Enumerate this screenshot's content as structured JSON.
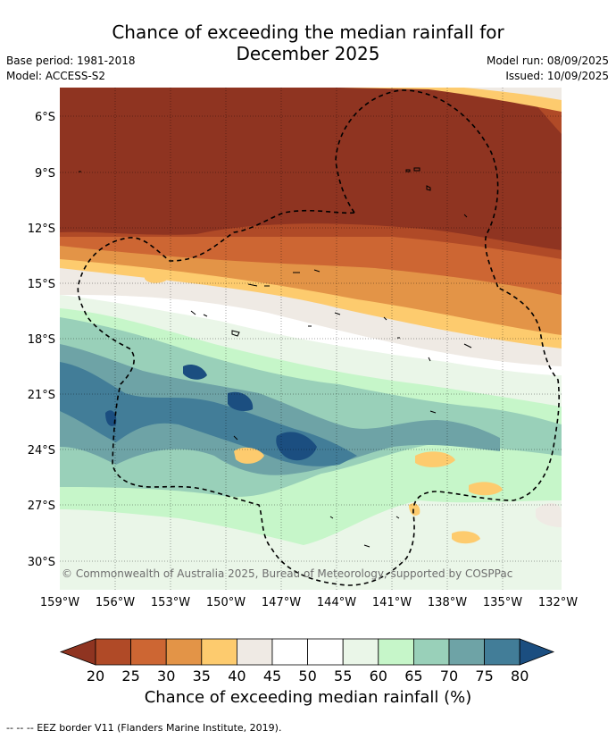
{
  "header": {
    "title_line1": "Chance of exceeding the median rainfall for",
    "title_line2": "December 2025",
    "base_period": "Base period: 1981-2018",
    "model": "Model: ACCESS-S2",
    "model_run": "Model run: 08/09/2025",
    "issued": "Issued: 10/09/2025"
  },
  "map": {
    "lat_labels": [
      "6°S",
      "9°S",
      "12°S",
      "15°S",
      "18°S",
      "21°S",
      "24°S",
      "27°S",
      "30°S"
    ],
    "lon_labels": [
      "159°W",
      "156°W",
      "153°W",
      "150°W",
      "147°W",
      "144°W",
      "141°W",
      "138°W",
      "135°W",
      "132°W"
    ],
    "copyright": "© Commonwealth of Australia 2025, Bureau of Meteorology, supported by COSPPac"
  },
  "colorbar": {
    "ticks": [
      "20",
      "25",
      "30",
      "35",
      "40",
      "45",
      "50",
      "55",
      "60",
      "65",
      "70",
      "75",
      "80"
    ],
    "colors": {
      "below20": "#8f3421",
      "c20_25": "#b04a27",
      "c25_30": "#cd6633",
      "c30_35": "#e39447",
      "c35_40": "#fdcb6e",
      "c40_45": "#efeae4",
      "c45_50": "#ffffff",
      "c50_55": "#ffffff",
      "c55_60": "#eaf6e8",
      "c60_65": "#c6f6c9",
      "c65_70": "#99d0b9",
      "c70_75": "#6ea3a6",
      "c75_80": "#427d98",
      "above80": "#1b4e80"
    },
    "label": "Chance of exceeding median rainfall (%)"
  },
  "legend": {
    "text": "-- -- -- EEZ border V11 (Flanders Marine Institute, 2019)."
  }
}
